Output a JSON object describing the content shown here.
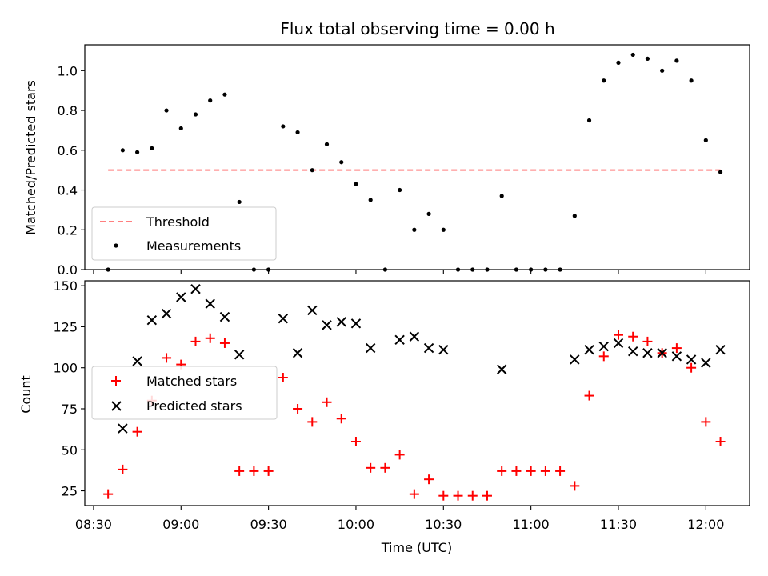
{
  "colors": {
    "threshold": "#ff7f7f",
    "measurements": "#000000",
    "matched": "#ff0000",
    "predicted": "#000000"
  },
  "chart_data": [
    {
      "type": "scatter",
      "title": "Flux total observing time = 0.00 h",
      "xlabel": "",
      "ylabel": "Matched/Predicted stars",
      "ylim": [
        0,
        1.13
      ],
      "yticks": [
        "0.0",
        "0.2",
        "0.4",
        "0.6",
        "0.8",
        "1.0"
      ],
      "ytick_values": [
        0,
        0.2,
        0.4,
        0.6,
        0.8,
        1.0
      ],
      "legend_position": "lower-left",
      "threshold": {
        "name": "Threshold",
        "style": "dashed",
        "x": [
          "08:35",
          "12:05"
        ],
        "y": 0.5
      },
      "series": [
        {
          "name": "Measurements",
          "marker": "dot",
          "x": [
            "08:35",
            "08:40",
            "08:45",
            "08:50",
            "08:55",
            "09:00",
            "09:05",
            "09:10",
            "09:15",
            "09:20",
            "09:25",
            "09:30",
            "09:35",
            "09:40",
            "09:45",
            "09:50",
            "09:55",
            "10:00",
            "10:05",
            "10:10",
            "10:15",
            "10:20",
            "10:25",
            "10:30",
            "10:35",
            "10:40",
            "10:45",
            "10:50",
            "10:55",
            "11:00",
            "11:05",
            "11:10",
            "11:15",
            "11:20",
            "11:25",
            "11:30",
            "11:35",
            "11:40",
            "11:45",
            "11:50",
            "11:55",
            "12:00",
            "12:05"
          ],
          "y": [
            0.0,
            0.6,
            0.59,
            0.61,
            0.8,
            0.71,
            0.78,
            0.85,
            0.88,
            0.34,
            0.0,
            0.0,
            0.72,
            0.69,
            0.5,
            0.63,
            0.54,
            0.43,
            0.35,
            0.0,
            0.4,
            0.2,
            0.28,
            0.2,
            0.0,
            0.0,
            0.0,
            0.37,
            0.0,
            0.0,
            0.0,
            0.0,
            0.27,
            0.75,
            0.95,
            1.04,
            1.08,
            1.06,
            1.0,
            1.05,
            0.95,
            0.65,
            0.49
          ]
        }
      ]
    },
    {
      "type": "scatter",
      "title": "",
      "xlabel": "Time (UTC)",
      "ylabel": "Count",
      "ylim": [
        16,
        153
      ],
      "yticks": [
        "25",
        "50",
        "75",
        "100",
        "125",
        "150"
      ],
      "ytick_values": [
        25,
        50,
        75,
        100,
        125,
        150
      ],
      "xlim": [
        "08:27",
        "12:15"
      ],
      "xticks": [
        "08:30",
        "09:00",
        "09:30",
        "10:00",
        "10:30",
        "11:00",
        "11:30",
        "12:00"
      ],
      "legend_position": "center-left",
      "series": [
        {
          "name": "Matched stars",
          "marker": "plus",
          "x": [
            "08:35",
            "08:40",
            "08:45",
            "08:50",
            "08:55",
            "09:00",
            "09:05",
            "09:10",
            "09:15",
            "09:20",
            "09:25",
            "09:30",
            "09:35",
            "09:40",
            "09:45",
            "09:50",
            "09:55",
            "10:00",
            "10:05",
            "10:10",
            "10:15",
            "10:20",
            "10:25",
            "10:30",
            "10:35",
            "10:40",
            "10:45",
            "10:50",
            "10:55",
            "11:00",
            "11:05",
            "11:10",
            "11:15",
            "11:20",
            "11:25",
            "11:30",
            "11:35",
            "11:40",
            "11:45",
            "11:50",
            "11:55",
            "12:00",
            "12:05"
          ],
          "y": [
            23,
            38,
            61,
            80,
            106,
            102,
            116,
            118,
            115,
            37,
            37,
            37,
            94,
            75,
            67,
            79,
            69,
            55,
            39,
            39,
            47,
            23,
            32,
            22,
            22,
            22,
            22,
            37,
            37,
            37,
            37,
            37,
            28,
            83,
            107,
            120,
            119,
            116,
            109,
            112,
            100,
            67,
            55
          ]
        },
        {
          "name": "Predicted stars",
          "marker": "x",
          "x": [
            "08:40",
            "08:45",
            "08:50",
            "08:55",
            "09:00",
            "09:05",
            "09:10",
            "09:15",
            "09:20",
            "09:35",
            "09:40",
            "09:45",
            "09:50",
            "09:55",
            "10:00",
            "10:05",
            "10:15",
            "10:20",
            "10:25",
            "10:30",
            "10:50",
            "11:15",
            "11:20",
            "11:25",
            "11:30",
            "11:35",
            "11:40",
            "11:45",
            "11:50",
            "11:55",
            "12:00",
            "12:05"
          ],
          "y": [
            63,
            104,
            129,
            133,
            143,
            148,
            139,
            131,
            108,
            130,
            109,
            135,
            126,
            128,
            127,
            112,
            117,
            119,
            112,
            111,
            99,
            105,
            111,
            113,
            115,
            110,
            109,
            109,
            107,
            105,
            103,
            111
          ]
        }
      ]
    }
  ]
}
